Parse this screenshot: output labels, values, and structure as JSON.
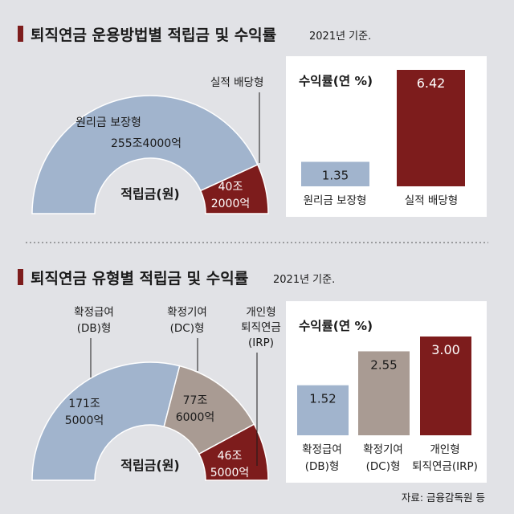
{
  "section1": {
    "title": "퇴직연금 운용방법별 적립금 및 수익률",
    "subtitle": "2021년 기준.",
    "donut": {
      "center_label": "적립금(원)",
      "segments": [
        {
          "name": "원리금 보장형",
          "value_text": "255조4000억",
          "value": 255.4,
          "color": "#a1b4cd"
        },
        {
          "name": "실적 배당형",
          "value_text_line1": "40조",
          "value_text_line2": "2000억",
          "value": 40.2,
          "color": "#7d1c1c"
        }
      ]
    },
    "bars": {
      "title": "수익률(연 %)",
      "items": [
        {
          "label": "원리금 보장형",
          "value": 1.35,
          "value_text": "1.35",
          "color": "#a1b4cd"
        },
        {
          "label": "실적 배당형",
          "value": 6.42,
          "value_text": "6.42",
          "color": "#7d1c1c"
        }
      ]
    }
  },
  "section2": {
    "title": "퇴직연금 유형별 적립금 및 수익률",
    "subtitle": "2021년 기준.",
    "donut": {
      "center_label": "적립금(원)",
      "segments": [
        {
          "name_line1": "확정급여",
          "name_line2": "(DB)형",
          "value_line1": "171조",
          "value_line2": "5000억",
          "value": 171.5,
          "color": "#a1b4cd"
        },
        {
          "name_line1": "확정기여",
          "name_line2": "(DC)형",
          "value_line1": "77조",
          "value_line2": "6000억",
          "value": 77.6,
          "color": "#a99b93"
        },
        {
          "name_line1": "개인형",
          "name_line2": "퇴직연금",
          "name_line3": "(IRP)",
          "value_line1": "46조",
          "value_line2": "5000억",
          "value": 46.5,
          "color": "#7d1c1c"
        }
      ]
    },
    "bars": {
      "title": "수익률(연 %)",
      "items": [
        {
          "label_line1": "확정급여",
          "label_line2": "(DB)형",
          "value": 1.52,
          "value_text": "1.52",
          "color": "#a1b4cd"
        },
        {
          "label_line1": "확정기여",
          "label_line2": "(DC)형",
          "value": 2.55,
          "value_text": "2.55",
          "color": "#a99b93"
        },
        {
          "label_line1": "개인형",
          "label_line2": "퇴직연금(IRP)",
          "value": 3.0,
          "value_text": "3.00",
          "color": "#7d1c1c"
        }
      ]
    }
  },
  "source": "자료: 금융감독원 등",
  "chart_data": [
    {
      "type": "pie",
      "title": "퇴직연금 운용방법별 적립금",
      "categories": [
        "원리금 보장형",
        "실적 배당형"
      ],
      "values": [
        255.4,
        40.2
      ],
      "unit": "조원"
    },
    {
      "type": "bar",
      "title": "수익률(연 %)",
      "categories": [
        "원리금 보장형",
        "실적 배당형"
      ],
      "values": [
        1.35,
        6.42
      ]
    },
    {
      "type": "pie",
      "title": "퇴직연금 유형별 적립금",
      "categories": [
        "확정급여(DB)형",
        "확정기여(DC)형",
        "개인형 퇴직연금(IRP)"
      ],
      "values": [
        171.5,
        77.6,
        46.5
      ],
      "unit": "조원"
    },
    {
      "type": "bar",
      "title": "수익률(연 %)",
      "categories": [
        "확정급여(DB)형",
        "확정기여(DC)형",
        "개인형 퇴직연금(IRP)"
      ],
      "values": [
        1.52,
        2.55,
        3.0
      ]
    }
  ]
}
